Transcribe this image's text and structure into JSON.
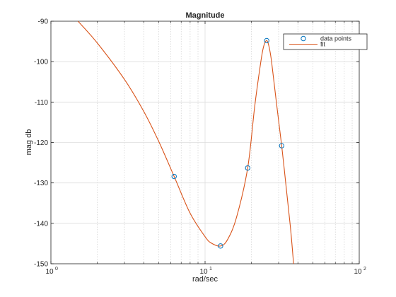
{
  "chart_data": {
    "type": "line",
    "title": "Magnitude",
    "xlabel": "rad/sec",
    "ylabel": "mag db",
    "xscale": "log",
    "xlim": [
      1,
      100
    ],
    "ylim": [
      -150,
      -90
    ],
    "x_ticks": [
      {
        "value": 1,
        "base": "10",
        "exp": "0"
      },
      {
        "value": 10,
        "base": "10",
        "exp": "1"
      },
      {
        "value": 100,
        "base": "10",
        "exp": "2"
      }
    ],
    "y_ticks": [
      {
        "value": -90,
        "label": "-90"
      },
      {
        "value": -100,
        "label": "-100"
      },
      {
        "value": -110,
        "label": "-110"
      },
      {
        "value": -120,
        "label": "-120"
      },
      {
        "value": -130,
        "label": "-130"
      },
      {
        "value": -140,
        "label": "-140"
      },
      {
        "value": -150,
        "label": "-150"
      }
    ],
    "grid": true,
    "minor_x_grid": true,
    "legend_position": "top-right",
    "series": [
      {
        "name": "data points",
        "marker": "circle",
        "color": "#0072bd",
        "x": [
          6.3,
          12.6,
          18.9,
          25.1,
          31.4
        ],
        "y": [
          -128.4,
          -145.6,
          -126.3,
          -94.8,
          -120.8
        ]
      },
      {
        "name": "fit",
        "line": "solid",
        "color": "#d95319",
        "x": [
          1.5,
          2,
          3,
          4,
          5,
          6.3,
          8,
          10,
          11,
          12.6,
          14,
          16,
          18.9,
          21,
          23,
          24,
          25.1,
          26,
          27,
          29,
          31.4,
          34,
          36,
          37.5
        ],
        "y": [
          -90,
          -95.4,
          -104.4,
          -112.3,
          -119.7,
          -128.4,
          -137.5,
          -143.3,
          -144.9,
          -145.6,
          -144.0,
          -138.5,
          -126.3,
          -111,
          -100,
          -96.2,
          -94.8,
          -96.3,
          -100,
          -110,
          -120.8,
          -133,
          -142,
          -150
        ]
      }
    ]
  }
}
